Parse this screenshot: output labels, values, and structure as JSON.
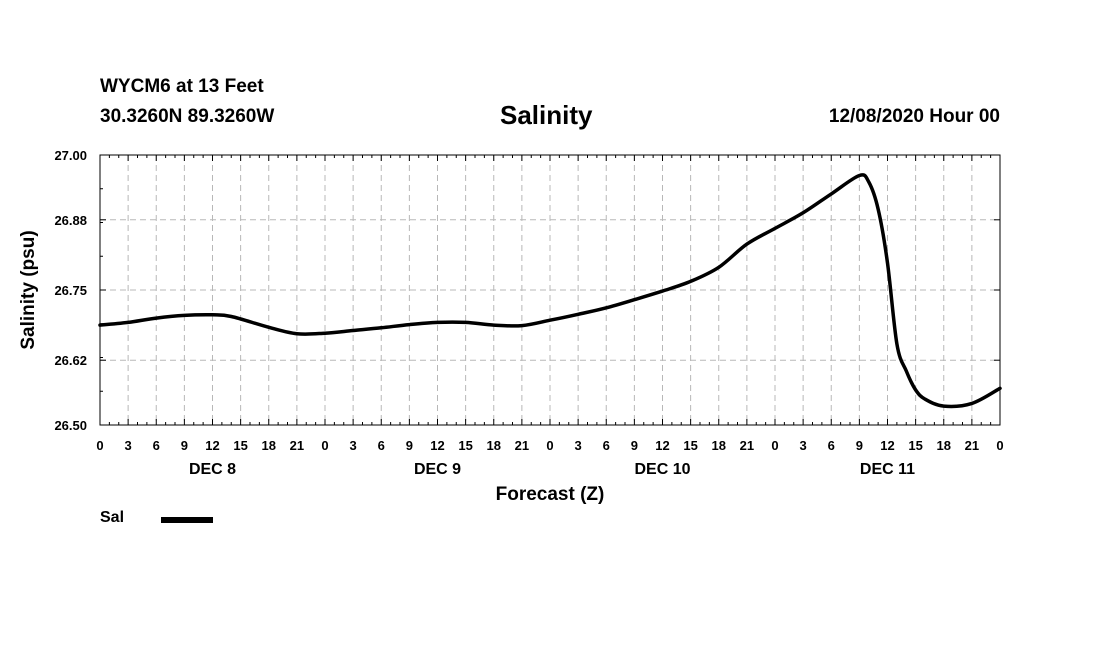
{
  "header": {
    "station": "WYCM6 at 13 Feet",
    "coords": "30.3260N 89.3260W",
    "title": "Salinity",
    "runtime": "12/08/2020 Hour 00"
  },
  "legend": {
    "label": "Sal"
  },
  "chart_data": {
    "type": "line",
    "title": "Salinity",
    "xlabel": "Forecast (Z)",
    "ylabel": "Salinity (psu)",
    "ylim": [
      26.5,
      27.0
    ],
    "xlim": [
      0,
      96
    ],
    "grid": true,
    "yticks": [
      27.0,
      26.88,
      26.75,
      26.62,
      26.5
    ],
    "yticklabels": [
      "27.00",
      "26.88",
      "26.75",
      "26.62",
      "26.50"
    ],
    "xticklabels": [
      "0",
      "3",
      "6",
      "9",
      "12",
      "15",
      "18",
      "21",
      "0",
      "3",
      "6",
      "9",
      "12",
      "15",
      "18",
      "21",
      "0",
      "3",
      "6",
      "9",
      "12",
      "15",
      "18",
      "21",
      "0",
      "3",
      "6",
      "9",
      "12",
      "15",
      "18",
      "21",
      "0"
    ],
    "day_labels": [
      {
        "label": "DEC 8",
        "hour": 12
      },
      {
        "label": "DEC 9",
        "hour": 36
      },
      {
        "label": "DEC 10",
        "hour": 60
      },
      {
        "label": "DEC 11",
        "hour": 84
      }
    ],
    "series": [
      {
        "name": "Sal",
        "x": [
          0,
          3,
          6,
          9,
          12,
          14,
          18,
          21,
          24,
          27,
          30,
          33,
          36,
          39,
          42,
          45,
          48,
          51,
          54,
          57,
          60,
          63,
          66,
          69,
          72,
          75,
          78,
          81,
          82,
          83,
          84,
          85,
          86,
          87,
          88,
          90,
          93,
          96
        ],
        "values": [
          26.685,
          26.69,
          26.698,
          26.703,
          26.704,
          26.701,
          26.681,
          26.669,
          26.67,
          26.675,
          26.68,
          26.686,
          26.69,
          26.69,
          26.685,
          26.684,
          26.694,
          26.705,
          26.717,
          26.732,
          26.748,
          26.766,
          26.792,
          26.835,
          26.864,
          26.893,
          26.928,
          26.962,
          26.95,
          26.9,
          26.8,
          26.65,
          26.6,
          26.565,
          26.548,
          26.535,
          26.54,
          26.568
        ]
      }
    ]
  }
}
